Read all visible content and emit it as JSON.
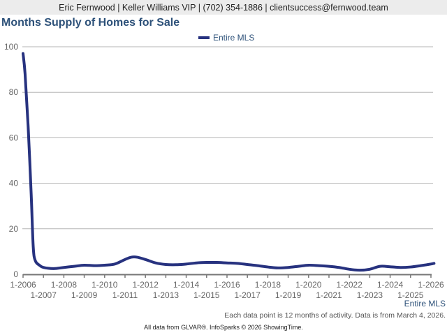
{
  "header": {
    "contact_line": "Eric Fernwood | Keller Williams VIP | (702) 354-1886 | clientsuccess@fernwood.team"
  },
  "chart": {
    "title": "Months Supply of Homes for Sale",
    "legend_label": "Entire MLS",
    "series_label": "Entire MLS",
    "note": "Each data point is 12 months of activity. Data is from March 4, 2026.",
    "footer": "All data from GLVAR®. InfoSparks © 2026 ShowingTime.",
    "line_color": "#27327f",
    "title_color": "#2d5179"
  },
  "chart_data": {
    "type": "line",
    "title": "Months Supply of Homes for Sale",
    "xlabel": "",
    "ylabel": "",
    "ylim": [
      0,
      100
    ],
    "yticks": [
      0,
      20,
      40,
      60,
      80,
      100
    ],
    "grid": true,
    "legend_position": "top",
    "x_tick_labels": [
      "1-2006",
      "1-2007",
      "1-2008",
      "1-2009",
      "1-2010",
      "1-2011",
      "1-2012",
      "1-2013",
      "1-2014",
      "1-2015",
      "1-2016",
      "1-2017",
      "1-2018",
      "1-2019",
      "1-2020",
      "1-2021",
      "1-2022",
      "1-2023",
      "1-2024",
      "1-2025",
      "1-2026"
    ],
    "series": [
      {
        "name": "Entire MLS",
        "x": [
          2006.0,
          2006.1,
          2006.25,
          2006.4,
          2006.5,
          2006.6,
          2006.8,
          2007.0,
          2007.5,
          2008.0,
          2008.5,
          2009.0,
          2009.5,
          2010.0,
          2010.5,
          2011.0,
          2011.3,
          2011.6,
          2012.0,
          2012.5,
          2013.0,
          2013.5,
          2014.0,
          2014.5,
          2015.0,
          2015.5,
          2016.0,
          2016.5,
          2017.0,
          2017.5,
          2018.0,
          2018.5,
          2019.0,
          2019.5,
          2020.0,
          2020.5,
          2021.0,
          2021.5,
          2022.0,
          2022.5,
          2023.0,
          2023.5,
          2024.0,
          2024.5,
          2025.0,
          2025.5,
          2026.0,
          2026.15
        ],
        "values": [
          97,
          88,
          65,
          35,
          12,
          6,
          4,
          3,
          2.5,
          3,
          3.5,
          4,
          3.8,
          4,
          4.5,
          6.5,
          7.5,
          7.5,
          6.5,
          5,
          4.3,
          4.2,
          4.5,
          5,
          5.2,
          5.2,
          5,
          4.8,
          4.3,
          3.8,
          3.2,
          2.8,
          3,
          3.5,
          4,
          3.8,
          3.5,
          3,
          2.2,
          1.8,
          2.2,
          3.5,
          3.3,
          3,
          3.2,
          3.8,
          4.5,
          4.8
        ]
      }
    ]
  }
}
